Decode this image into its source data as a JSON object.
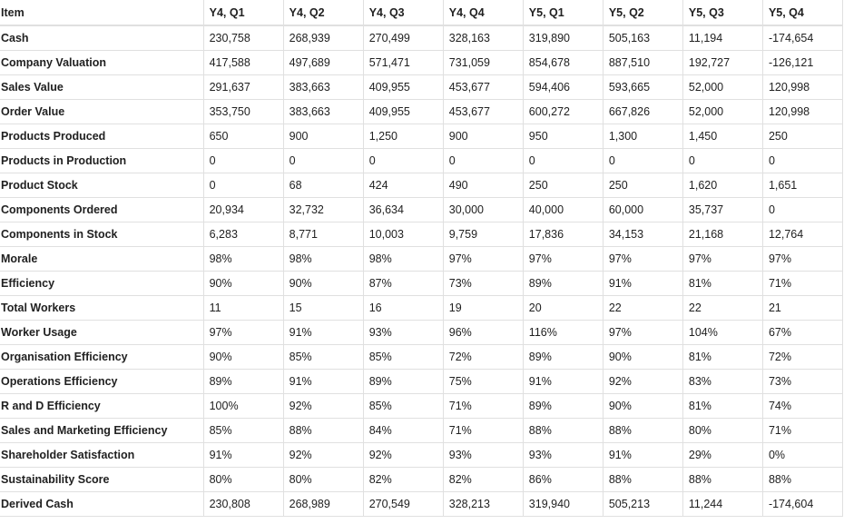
{
  "columns": [
    "Item",
    "Y4, Q1",
    "Y4, Q2",
    "Y4, Q3",
    "Y4, Q4",
    "Y5, Q1",
    "Y5, Q2",
    "Y5, Q3",
    "Y5, Q4"
  ],
  "rows": [
    {
      "item": "Cash",
      "values": [
        "230,758",
        "268,939",
        "270,499",
        "328,163",
        "319,890",
        "505,163",
        "11,194",
        "-174,654"
      ]
    },
    {
      "item": "Company Valuation",
      "values": [
        "417,588",
        "497,689",
        "571,471",
        "731,059",
        "854,678",
        "887,510",
        "192,727",
        "-126,121"
      ]
    },
    {
      "item": "Sales Value",
      "values": [
        "291,637",
        "383,663",
        "409,955",
        "453,677",
        "594,406",
        "593,665",
        "52,000",
        "120,998"
      ]
    },
    {
      "item": "Order Value",
      "values": [
        "353,750",
        "383,663",
        "409,955",
        "453,677",
        "600,272",
        "667,826",
        "52,000",
        "120,998"
      ]
    },
    {
      "item": "Products Produced",
      "values": [
        "650",
        "900",
        "1,250",
        "900",
        "950",
        "1,300",
        "1,450",
        "250"
      ]
    },
    {
      "item": "Products in Production",
      "values": [
        "0",
        "0",
        "0",
        "0",
        "0",
        "0",
        "0",
        "0"
      ]
    },
    {
      "item": "Product Stock",
      "values": [
        "0",
        "68",
        "424",
        "490",
        "250",
        "250",
        "1,620",
        "1,651"
      ]
    },
    {
      "item": "Components Ordered",
      "values": [
        "20,934",
        "32,732",
        "36,634",
        "30,000",
        "40,000",
        "60,000",
        "35,737",
        "0"
      ]
    },
    {
      "item": "Components in Stock",
      "values": [
        "6,283",
        "8,771",
        "10,003",
        "9,759",
        "17,836",
        "34,153",
        "21,168",
        "12,764"
      ]
    },
    {
      "item": "Morale",
      "values": [
        "98%",
        "98%",
        "98%",
        "97%",
        "97%",
        "97%",
        "97%",
        "97%"
      ]
    },
    {
      "item": "Efficiency",
      "values": [
        "90%",
        "90%",
        "87%",
        "73%",
        "89%",
        "91%",
        "81%",
        "71%"
      ]
    },
    {
      "item": "Total Workers",
      "values": [
        "11",
        "15",
        "16",
        "19",
        "20",
        "22",
        "22",
        "21"
      ]
    },
    {
      "item": "Worker Usage",
      "values": [
        "97%",
        "91%",
        "93%",
        "96%",
        "116%",
        "97%",
        "104%",
        "67%"
      ]
    },
    {
      "item": "Organisation Efficiency",
      "values": [
        "90%",
        "85%",
        "85%",
        "72%",
        "89%",
        "90%",
        "81%",
        "72%"
      ]
    },
    {
      "item": "Operations Efficiency",
      "values": [
        "89%",
        "91%",
        "89%",
        "75%",
        "91%",
        "92%",
        "83%",
        "73%"
      ]
    },
    {
      "item": "R and D Efficiency",
      "values": [
        "100%",
        "92%",
        "85%",
        "71%",
        "89%",
        "90%",
        "81%",
        "74%"
      ]
    },
    {
      "item": "Sales and Marketing Efficiency",
      "values": [
        "85%",
        "88%",
        "84%",
        "71%",
        "88%",
        "88%",
        "80%",
        "71%"
      ]
    },
    {
      "item": "Shareholder Satisfaction",
      "values": [
        "91%",
        "92%",
        "92%",
        "93%",
        "93%",
        "91%",
        "29%",
        "0%"
      ]
    },
    {
      "item": "Sustainability Score",
      "values": [
        "80%",
        "80%",
        "82%",
        "82%",
        "86%",
        "88%",
        "88%",
        "88%"
      ]
    },
    {
      "item": "Derived Cash",
      "values": [
        "230,808",
        "268,989",
        "270,549",
        "328,213",
        "319,940",
        "505,213",
        "11,244",
        "-174,604"
      ]
    }
  ]
}
